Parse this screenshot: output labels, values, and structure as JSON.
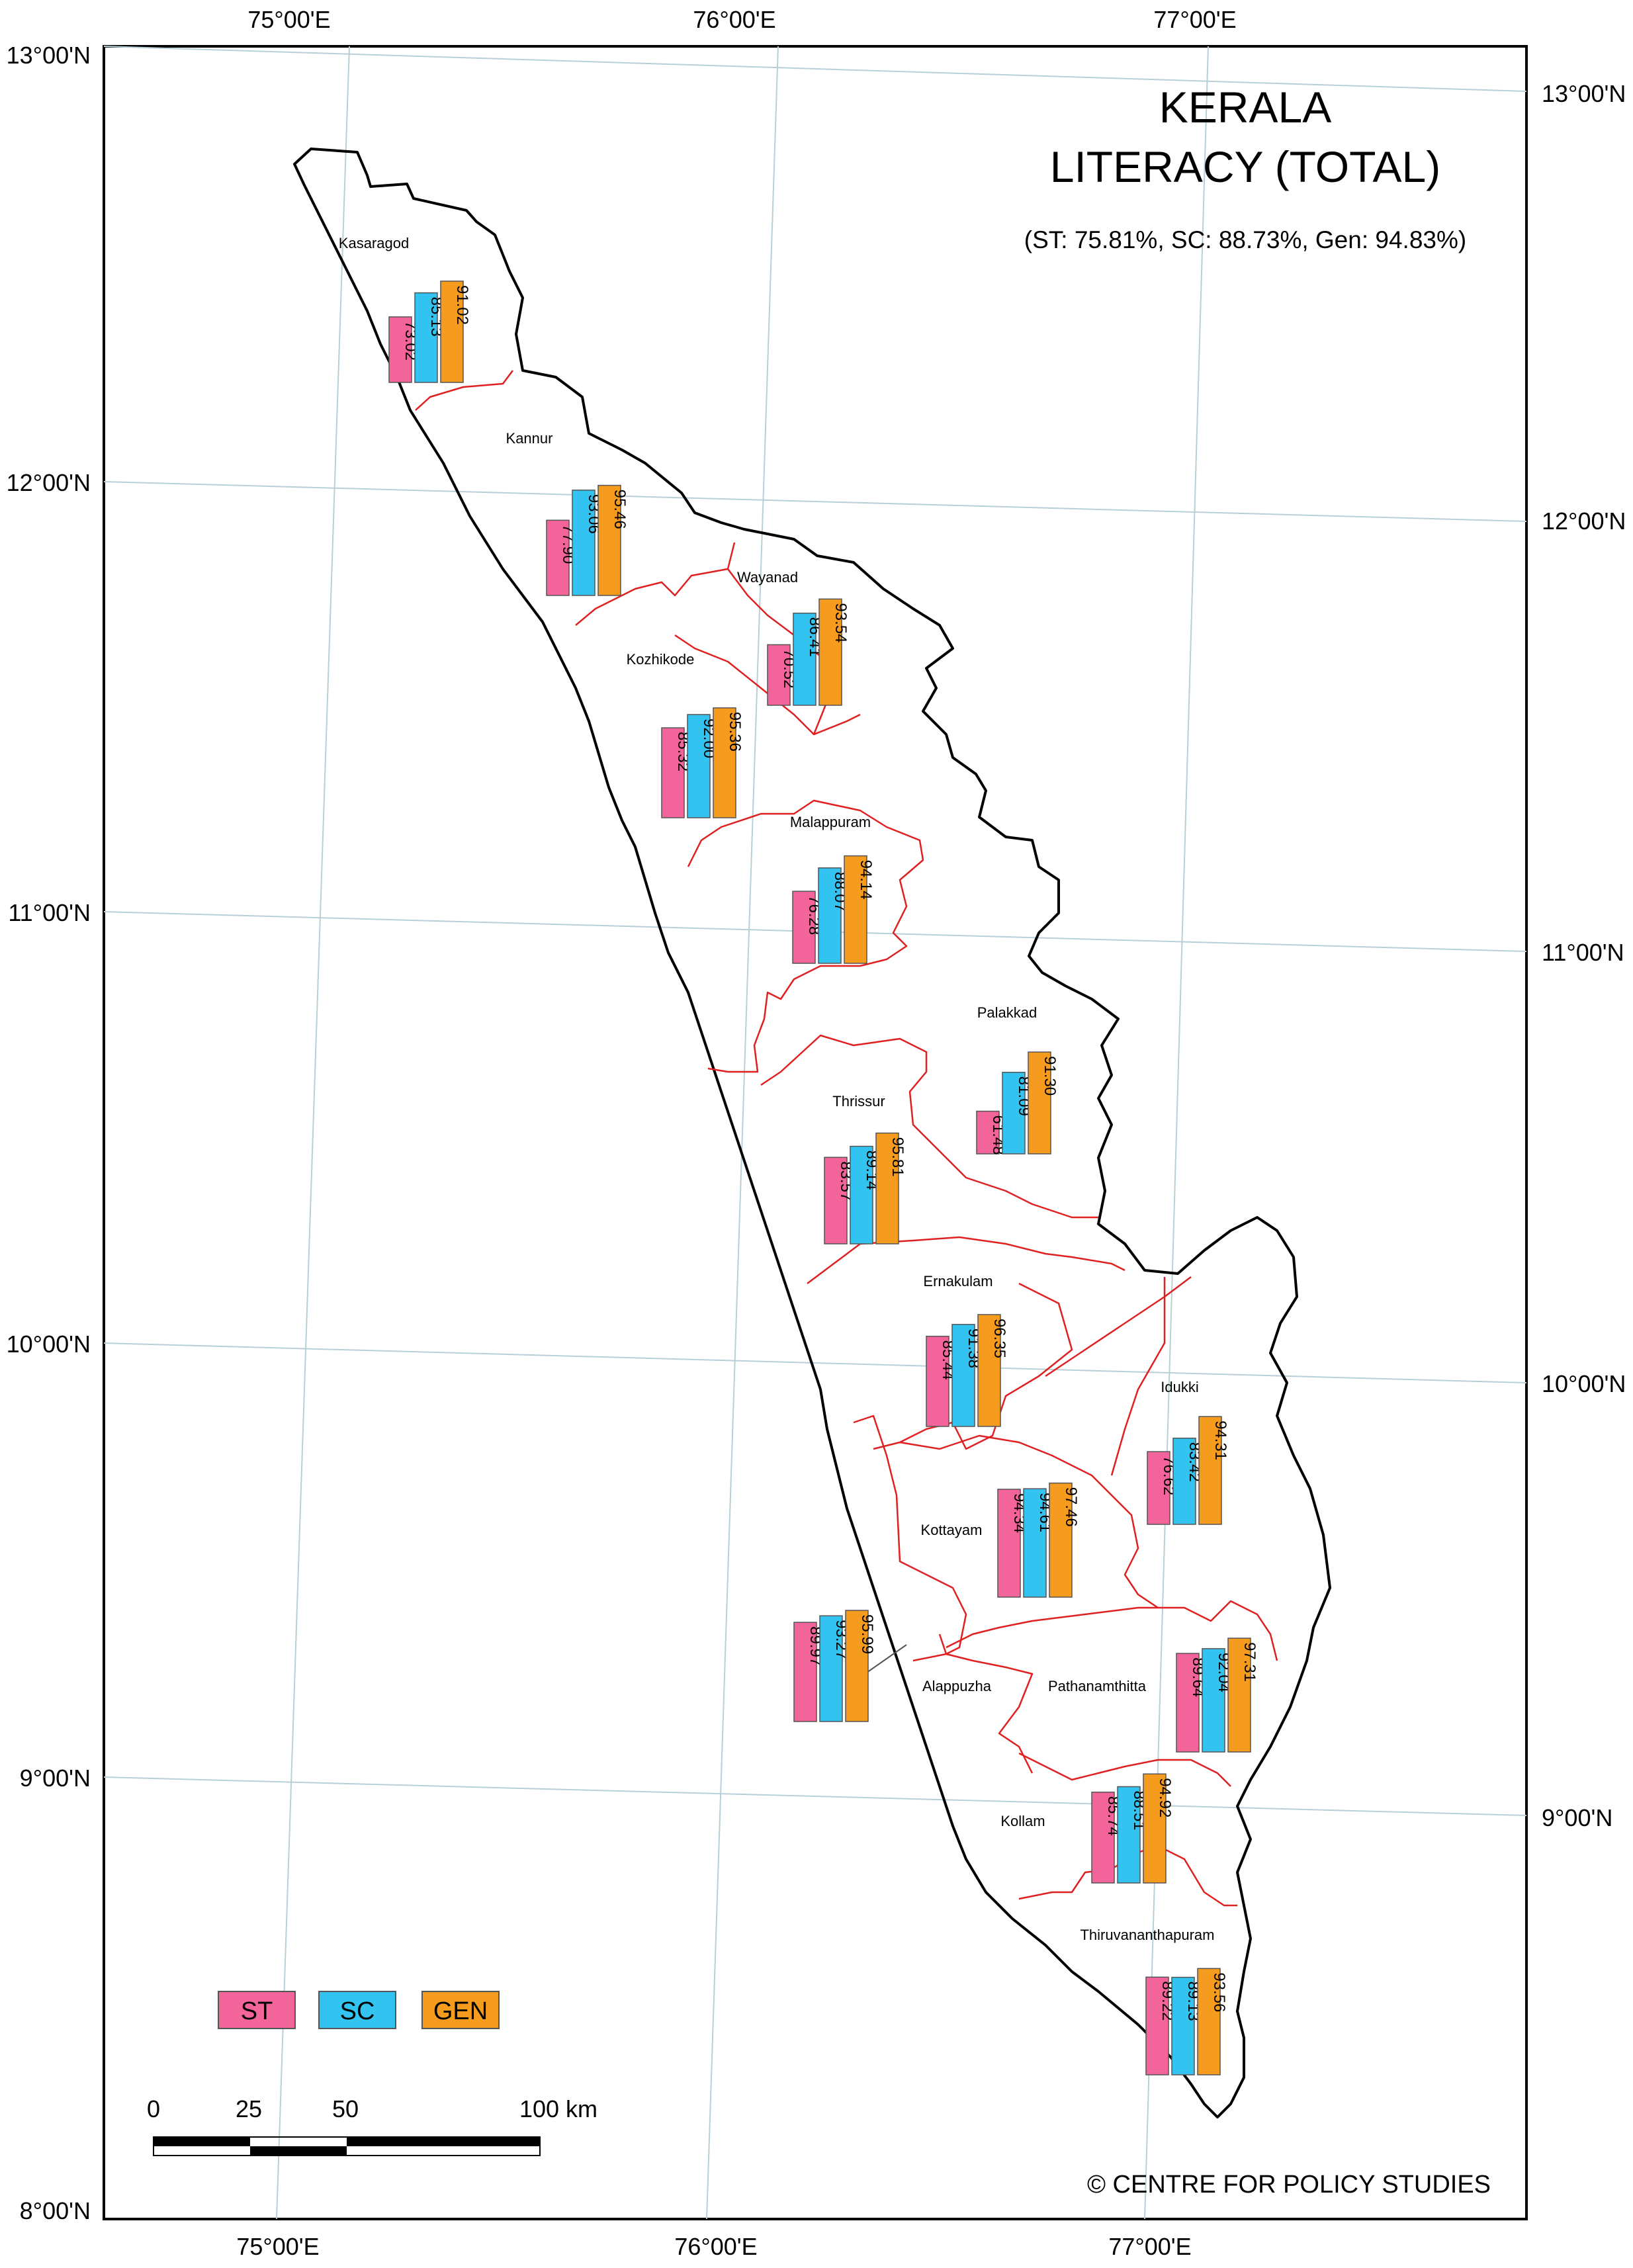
{
  "title_line1": "KERALA",
  "title_line2": "LITERACY (TOTAL)",
  "subtitle": "(ST: 75.81%, SC: 88.73%, Gen: 94.83%)",
  "credit": "© CENTRE FOR POLICY STUDIES",
  "colors": {
    "st": "#f2649a",
    "sc": "#33c3f0",
    "gen": "#f59c1e",
    "boundary": "#000000",
    "district_boundary": "#e02020",
    "graticule": "#b8cfd8"
  },
  "legend": {
    "st": "ST",
    "sc": "SC",
    "gen": "GEN"
  },
  "scale_bar": {
    "labels": [
      "0",
      "25",
      "50",
      "100 km"
    ]
  },
  "lon_labels": {
    "top": [
      "75°00'E",
      "76°00'E",
      "77°00'E"
    ],
    "bottom": [
      "75°00'E",
      "76°00'E",
      "77°00'E"
    ]
  },
  "lat_labels": {
    "left": [
      "13°00'N",
      "12°00'N",
      "11°00'N",
      "10°00'N",
      "9°00'N",
      "8°00'N"
    ],
    "right": [
      "13°00'N",
      "12°00'N",
      "11°00'N",
      "10°00'N",
      "9°00'N"
    ]
  },
  "districts": [
    {
      "name": "Kasaragod",
      "st": "73.02",
      "sc": "85.13",
      "gen": "91.02"
    },
    {
      "name": "Kannur",
      "st": "77.90",
      "sc": "93.06",
      "gen": "95.46"
    },
    {
      "name": "Wayanad",
      "st": "70.52",
      "sc": "86.41",
      "gen": "93.54"
    },
    {
      "name": "Kozhikode",
      "st": "85.32",
      "sc": "92.00",
      "gen": "95.36"
    },
    {
      "name": "Malappuram",
      "st": "76.28",
      "sc": "88.07",
      "gen": "94.14"
    },
    {
      "name": "Palakkad",
      "st": "61.48",
      "sc": "81.09",
      "gen": "91.30"
    },
    {
      "name": "Thrissur",
      "st": "83.57",
      "sc": "89.14",
      "gen": "95.81"
    },
    {
      "name": "Ernakulam",
      "st": "85.44",
      "sc": "91.38",
      "gen": "96.35"
    },
    {
      "name": "Idukki",
      "st": "76.62",
      "sc": "83.42",
      "gen": "94.31"
    },
    {
      "name": "Kottayam",
      "st": "94.34",
      "sc": "94.61",
      "gen": "97.46"
    },
    {
      "name": "Alappuzha",
      "st": "89.97",
      "sc": "93.27",
      "gen": "95.99"
    },
    {
      "name": "Pathanamthitta",
      "st": "89.64",
      "sc": "92.04",
      "gen": "97.31"
    },
    {
      "name": "Kollam",
      "st": "85.74",
      "sc": "88.51",
      "gen": "94.92"
    },
    {
      "name": "Thiruvananthapuram",
      "st": "89.22",
      "sc": "89.13",
      "gen": "93.56"
    }
  ]
}
